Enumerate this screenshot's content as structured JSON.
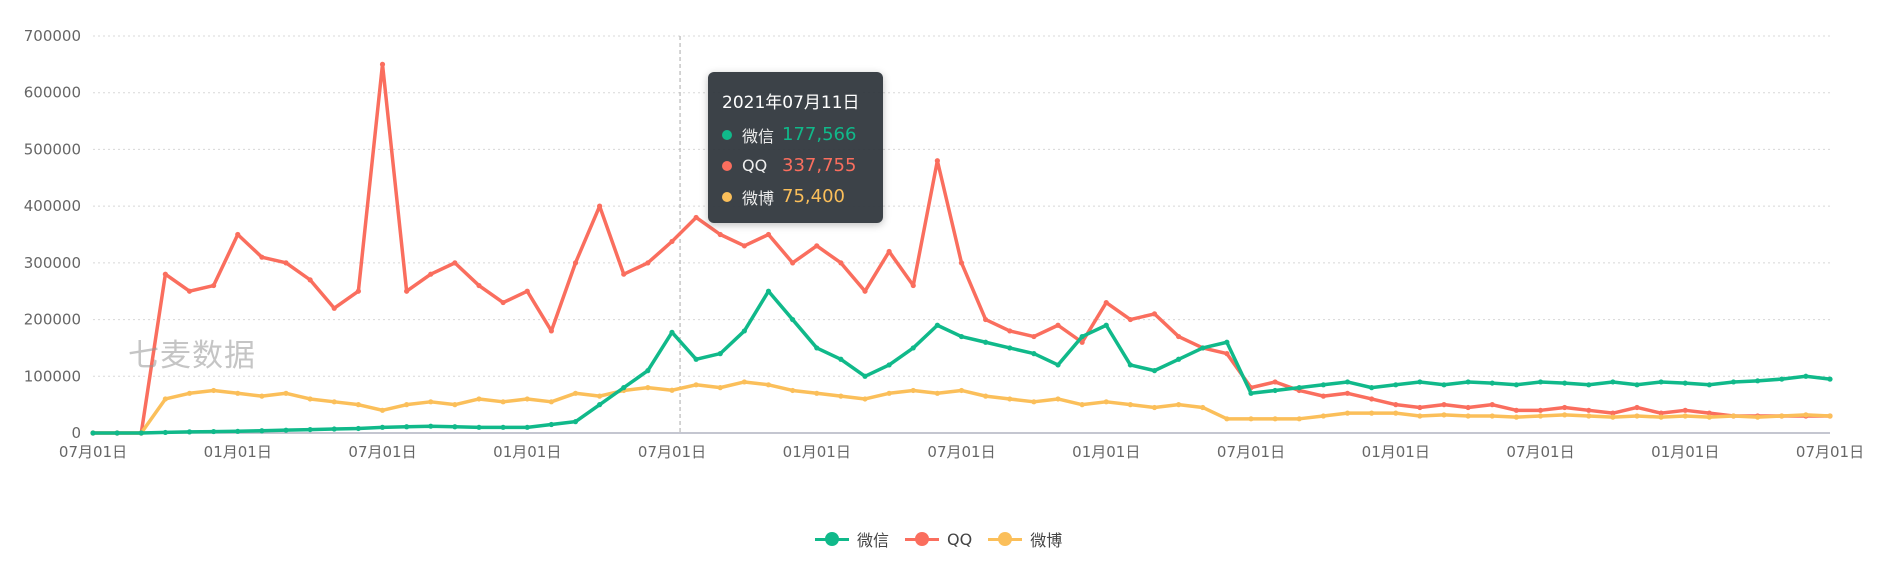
{
  "chart_data": {
    "type": "line",
    "x": [
      "2019-07",
      "2019-08",
      "2019-09",
      "2019-10",
      "2019-11",
      "2019-12",
      "2020-01",
      "2020-02",
      "2020-03",
      "2020-04",
      "2020-05",
      "2020-06",
      "2020-07",
      "2020-08",
      "2020-09",
      "2020-10",
      "2020-11",
      "2020-12",
      "2021-01",
      "2021-02",
      "2021-03",
      "2021-04",
      "2021-05",
      "2021-06",
      "2021-07",
      "2021-08",
      "2021-09",
      "2021-10",
      "2021-11",
      "2021-12",
      "2022-01",
      "2022-02",
      "2022-03",
      "2022-04",
      "2022-05",
      "2022-06",
      "2022-07",
      "2022-08",
      "2022-09",
      "2022-10",
      "2022-11",
      "2022-12",
      "2023-01",
      "2023-02",
      "2023-03",
      "2023-04",
      "2023-05",
      "2023-06",
      "2023-07",
      "2023-08",
      "2023-09",
      "2023-10",
      "2023-11",
      "2023-12",
      "2024-01",
      "2024-02",
      "2024-03",
      "2024-04",
      "2024-05",
      "2024-06",
      "2024-07",
      "2024-08",
      "2024-09",
      "2024-10",
      "2024-11",
      "2024-12",
      "2025-01",
      "2025-02",
      "2025-03",
      "2025-04",
      "2025-05",
      "2025-06",
      "2025-07"
    ],
    "x_tick_labels": [
      "07月01日",
      "01月01日",
      "07月01日",
      "01月01日",
      "07月01日",
      "01月01日",
      "07月01日",
      "01月01日",
      "07月01日",
      "01月01日",
      "07月01日",
      "01月01日",
      "07月01日"
    ],
    "ylim": [
      0,
      700000
    ],
    "y_ticks": [
      "0",
      "100000",
      "200000",
      "300000",
      "400000",
      "500000",
      "600000",
      "700000"
    ],
    "grid": "horizontal dotted",
    "legend_position": "bottom-center",
    "series": [
      {
        "name": "微信",
        "color": "#10b98a",
        "values": [
          0,
          0,
          0,
          1000,
          2000,
          2500,
          3000,
          4000,
          5000,
          6000,
          7000,
          8000,
          10000,
          11000,
          12000,
          11000,
          10000,
          10000,
          10000,
          15000,
          20000,
          50000,
          80000,
          110000,
          177566,
          130000,
          140000,
          180000,
          250000,
          200000,
          150000,
          130000,
          100000,
          120000,
          150000,
          190000,
          170000,
          160000,
          150000,
          140000,
          120000,
          170000,
          190000,
          120000,
          110000,
          130000,
          150000,
          160000,
          70000,
          75000,
          80000,
          85000,
          90000,
          80000,
          85000,
          90000,
          85000,
          90000,
          88000,
          85000,
          90000,
          88000,
          85000,
          90000,
          85000,
          90000,
          88000,
          85000,
          90000,
          92000,
          95000,
          100000,
          95000
        ]
      },
      {
        "name": "QQ",
        "color": "#fa6e5e",
        "values": [
          0,
          0,
          0,
          280000,
          250000,
          260000,
          350000,
          310000,
          300000,
          270000,
          220000,
          250000,
          650000,
          250000,
          280000,
          300000,
          260000,
          230000,
          250000,
          180000,
          300000,
          400000,
          280000,
          300000,
          337755,
          380000,
          350000,
          330000,
          350000,
          300000,
          330000,
          300000,
          250000,
          320000,
          260000,
          480000,
          300000,
          200000,
          180000,
          170000,
          190000,
          160000,
          230000,
          200000,
          210000,
          170000,
          150000,
          140000,
          80000,
          90000,
          75000,
          65000,
          70000,
          60000,
          50000,
          45000,
          50000,
          45000,
          50000,
          40000,
          40000,
          45000,
          40000,
          35000,
          45000,
          35000,
          40000,
          35000,
          30000,
          30000,
          30000,
          30000,
          30000
        ]
      },
      {
        "name": "微博",
        "color": "#fbbf5a",
        "values": [
          0,
          0,
          0,
          60000,
          70000,
          75000,
          70000,
          65000,
          70000,
          60000,
          55000,
          50000,
          40000,
          50000,
          55000,
          50000,
          60000,
          55000,
          60000,
          55000,
          70000,
          65000,
          75000,
          80000,
          75400,
          85000,
          80000,
          90000,
          85000,
          75000,
          70000,
          65000,
          60000,
          70000,
          75000,
          70000,
          75000,
          65000,
          60000,
          55000,
          60000,
          50000,
          55000,
          50000,
          45000,
          50000,
          45000,
          25000,
          25000,
          25000,
          25000,
          30000,
          35000,
          35000,
          35000,
          30000,
          32000,
          30000,
          30000,
          28000,
          30000,
          32000,
          30000,
          28000,
          30000,
          28000,
          30000,
          28000,
          30000,
          28000,
          30000,
          32000,
          30000
        ]
      }
    ],
    "tooltip": {
      "title": "2021年07月11日",
      "rows": [
        {
          "name": "微信",
          "value": "177,566",
          "color": "#10b98a"
        },
        {
          "name": "QQ",
          "value": "337,755",
          "color": "#fa6e5e"
        },
        {
          "name": "微博",
          "value": "75,400",
          "color": "#fbbf5a"
        }
      ]
    }
  },
  "watermark": "七麦数据"
}
